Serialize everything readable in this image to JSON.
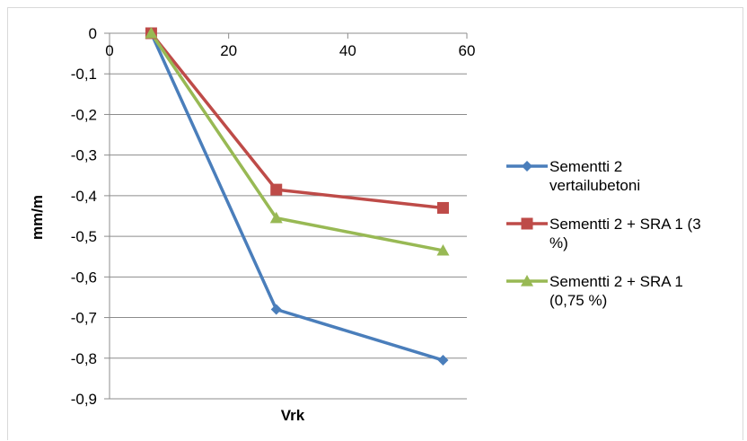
{
  "chart_data": {
    "type": "line",
    "title": "",
    "xlabel": "Vrk",
    "ylabel": "mm/m",
    "xlim": [
      0,
      60
    ],
    "ylim": [
      -0.9,
      0
    ],
    "x_ticks": [
      "0",
      "20",
      "40",
      "60"
    ],
    "x_tick_values": [
      0,
      20,
      40,
      60
    ],
    "y_ticks": [
      "0",
      "-0,1",
      "-0,2",
      "-0,3",
      "-0,4",
      "-0,5",
      "-0,6",
      "-0,7",
      "-0,8",
      "-0,9"
    ],
    "y_tick_values": [
      0,
      -0.1,
      -0.2,
      -0.3,
      -0.4,
      -0.5,
      -0.6,
      -0.7,
      -0.8,
      -0.9
    ],
    "grid": "horizontal",
    "legend_position": "right",
    "series": [
      {
        "name": "Sementti 2 vertailubetoni",
        "legend_lines": [
          "Sementti 2",
          "vertailubetoni"
        ],
        "color": "#4a7ebb",
        "marker": "diamond",
        "x": [
          7,
          28,
          56
        ],
        "y": [
          0,
          -0.68,
          -0.805
        ]
      },
      {
        "name": "Sementti 2 + SRA 1 (3 %)",
        "legend_lines": [
          "Sementti 2 + SRA 1 (3",
          "%)"
        ],
        "color": "#be4b48",
        "marker": "square",
        "x": [
          7,
          28,
          56
        ],
        "y": [
          0,
          -0.385,
          -0.43
        ]
      },
      {
        "name": "Sementti 2 + SRA 1 (0,75 %)",
        "legend_lines": [
          "Sementti 2 + SRA 1",
          "(0,75 %)"
        ],
        "color": "#98b954",
        "marker": "triangle",
        "x": [
          7,
          28,
          56
        ],
        "y": [
          0,
          -0.455,
          -0.535
        ]
      }
    ]
  }
}
